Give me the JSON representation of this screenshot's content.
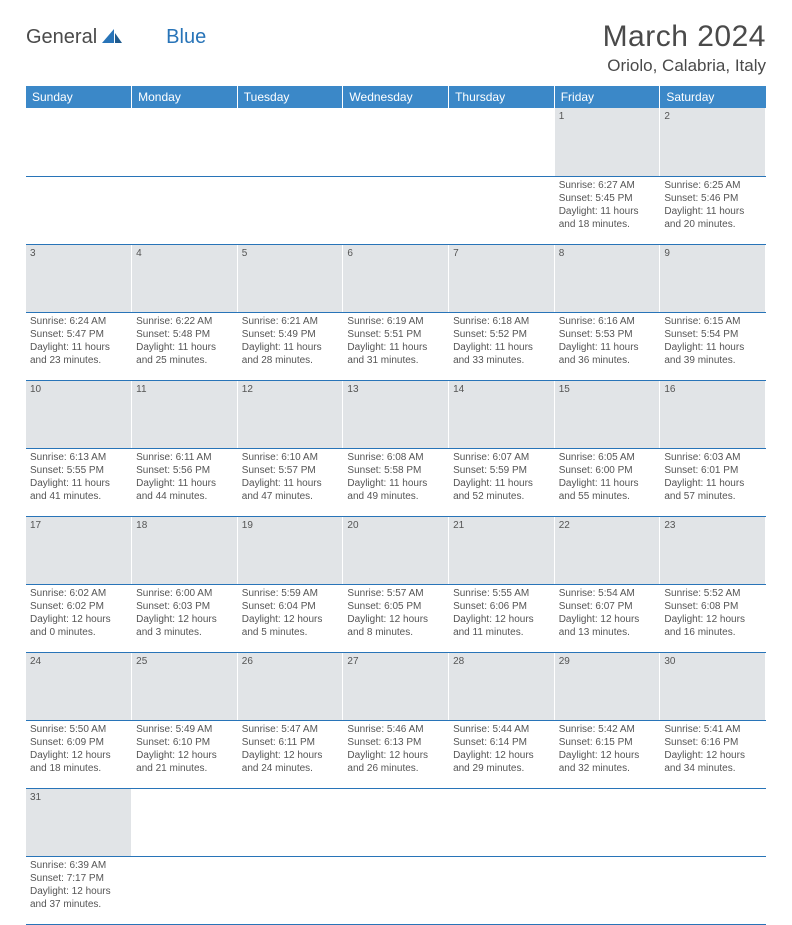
{
  "logo": {
    "text1": "General",
    "text2": "Blue"
  },
  "title": {
    "month": "March 2024",
    "location": "Oriolo, Calabria, Italy"
  },
  "headers": [
    "Sunday",
    "Monday",
    "Tuesday",
    "Wednesday",
    "Thursday",
    "Friday",
    "Saturday"
  ],
  "colors": {
    "header_bg": "#3b88c8",
    "daynum_bg": "#e1e4e7",
    "border": "#2874b8"
  },
  "weeks": [
    {
      "nums": [
        "",
        "",
        "",
        "",
        "",
        "1",
        "2"
      ],
      "cells": [
        null,
        null,
        null,
        null,
        null,
        {
          "sunrise": "Sunrise: 6:27 AM",
          "sunset": "Sunset: 5:45 PM",
          "day1": "Daylight: 11 hours",
          "day2": "and 18 minutes."
        },
        {
          "sunrise": "Sunrise: 6:25 AM",
          "sunset": "Sunset: 5:46 PM",
          "day1": "Daylight: 11 hours",
          "day2": "and 20 minutes."
        }
      ]
    },
    {
      "nums": [
        "3",
        "4",
        "5",
        "6",
        "7",
        "8",
        "9"
      ],
      "cells": [
        {
          "sunrise": "Sunrise: 6:24 AM",
          "sunset": "Sunset: 5:47 PM",
          "day1": "Daylight: 11 hours",
          "day2": "and 23 minutes."
        },
        {
          "sunrise": "Sunrise: 6:22 AM",
          "sunset": "Sunset: 5:48 PM",
          "day1": "Daylight: 11 hours",
          "day2": "and 25 minutes."
        },
        {
          "sunrise": "Sunrise: 6:21 AM",
          "sunset": "Sunset: 5:49 PM",
          "day1": "Daylight: 11 hours",
          "day2": "and 28 minutes."
        },
        {
          "sunrise": "Sunrise: 6:19 AM",
          "sunset": "Sunset: 5:51 PM",
          "day1": "Daylight: 11 hours",
          "day2": "and 31 minutes."
        },
        {
          "sunrise": "Sunrise: 6:18 AM",
          "sunset": "Sunset: 5:52 PM",
          "day1": "Daylight: 11 hours",
          "day2": "and 33 minutes."
        },
        {
          "sunrise": "Sunrise: 6:16 AM",
          "sunset": "Sunset: 5:53 PM",
          "day1": "Daylight: 11 hours",
          "day2": "and 36 minutes."
        },
        {
          "sunrise": "Sunrise: 6:15 AM",
          "sunset": "Sunset: 5:54 PM",
          "day1": "Daylight: 11 hours",
          "day2": "and 39 minutes."
        }
      ]
    },
    {
      "nums": [
        "10",
        "11",
        "12",
        "13",
        "14",
        "15",
        "16"
      ],
      "cells": [
        {
          "sunrise": "Sunrise: 6:13 AM",
          "sunset": "Sunset: 5:55 PM",
          "day1": "Daylight: 11 hours",
          "day2": "and 41 minutes."
        },
        {
          "sunrise": "Sunrise: 6:11 AM",
          "sunset": "Sunset: 5:56 PM",
          "day1": "Daylight: 11 hours",
          "day2": "and 44 minutes."
        },
        {
          "sunrise": "Sunrise: 6:10 AM",
          "sunset": "Sunset: 5:57 PM",
          "day1": "Daylight: 11 hours",
          "day2": "and 47 minutes."
        },
        {
          "sunrise": "Sunrise: 6:08 AM",
          "sunset": "Sunset: 5:58 PM",
          "day1": "Daylight: 11 hours",
          "day2": "and 49 minutes."
        },
        {
          "sunrise": "Sunrise: 6:07 AM",
          "sunset": "Sunset: 5:59 PM",
          "day1": "Daylight: 11 hours",
          "day2": "and 52 minutes."
        },
        {
          "sunrise": "Sunrise: 6:05 AM",
          "sunset": "Sunset: 6:00 PM",
          "day1": "Daylight: 11 hours",
          "day2": "and 55 minutes."
        },
        {
          "sunrise": "Sunrise: 6:03 AM",
          "sunset": "Sunset: 6:01 PM",
          "day1": "Daylight: 11 hours",
          "day2": "and 57 minutes."
        }
      ]
    },
    {
      "nums": [
        "17",
        "18",
        "19",
        "20",
        "21",
        "22",
        "23"
      ],
      "cells": [
        {
          "sunrise": "Sunrise: 6:02 AM",
          "sunset": "Sunset: 6:02 PM",
          "day1": "Daylight: 12 hours",
          "day2": "and 0 minutes."
        },
        {
          "sunrise": "Sunrise: 6:00 AM",
          "sunset": "Sunset: 6:03 PM",
          "day1": "Daylight: 12 hours",
          "day2": "and 3 minutes."
        },
        {
          "sunrise": "Sunrise: 5:59 AM",
          "sunset": "Sunset: 6:04 PM",
          "day1": "Daylight: 12 hours",
          "day2": "and 5 minutes."
        },
        {
          "sunrise": "Sunrise: 5:57 AM",
          "sunset": "Sunset: 6:05 PM",
          "day1": "Daylight: 12 hours",
          "day2": "and 8 minutes."
        },
        {
          "sunrise": "Sunrise: 5:55 AM",
          "sunset": "Sunset: 6:06 PM",
          "day1": "Daylight: 12 hours",
          "day2": "and 11 minutes."
        },
        {
          "sunrise": "Sunrise: 5:54 AM",
          "sunset": "Sunset: 6:07 PM",
          "day1": "Daylight: 12 hours",
          "day2": "and 13 minutes."
        },
        {
          "sunrise": "Sunrise: 5:52 AM",
          "sunset": "Sunset: 6:08 PM",
          "day1": "Daylight: 12 hours",
          "day2": "and 16 minutes."
        }
      ]
    },
    {
      "nums": [
        "24",
        "25",
        "26",
        "27",
        "28",
        "29",
        "30"
      ],
      "cells": [
        {
          "sunrise": "Sunrise: 5:50 AM",
          "sunset": "Sunset: 6:09 PM",
          "day1": "Daylight: 12 hours",
          "day2": "and 18 minutes."
        },
        {
          "sunrise": "Sunrise: 5:49 AM",
          "sunset": "Sunset: 6:10 PM",
          "day1": "Daylight: 12 hours",
          "day2": "and 21 minutes."
        },
        {
          "sunrise": "Sunrise: 5:47 AM",
          "sunset": "Sunset: 6:11 PM",
          "day1": "Daylight: 12 hours",
          "day2": "and 24 minutes."
        },
        {
          "sunrise": "Sunrise: 5:46 AM",
          "sunset": "Sunset: 6:13 PM",
          "day1": "Daylight: 12 hours",
          "day2": "and 26 minutes."
        },
        {
          "sunrise": "Sunrise: 5:44 AM",
          "sunset": "Sunset: 6:14 PM",
          "day1": "Daylight: 12 hours",
          "day2": "and 29 minutes."
        },
        {
          "sunrise": "Sunrise: 5:42 AM",
          "sunset": "Sunset: 6:15 PM",
          "day1": "Daylight: 12 hours",
          "day2": "and 32 minutes."
        },
        {
          "sunrise": "Sunrise: 5:41 AM",
          "sunset": "Sunset: 6:16 PM",
          "day1": "Daylight: 12 hours",
          "day2": "and 34 minutes."
        }
      ]
    },
    {
      "nums": [
        "31",
        "",
        "",
        "",
        "",
        "",
        ""
      ],
      "cells": [
        {
          "sunrise": "Sunrise: 6:39 AM",
          "sunset": "Sunset: 7:17 PM",
          "day1": "Daylight: 12 hours",
          "day2": "and 37 minutes."
        },
        null,
        null,
        null,
        null,
        null,
        null
      ]
    }
  ]
}
